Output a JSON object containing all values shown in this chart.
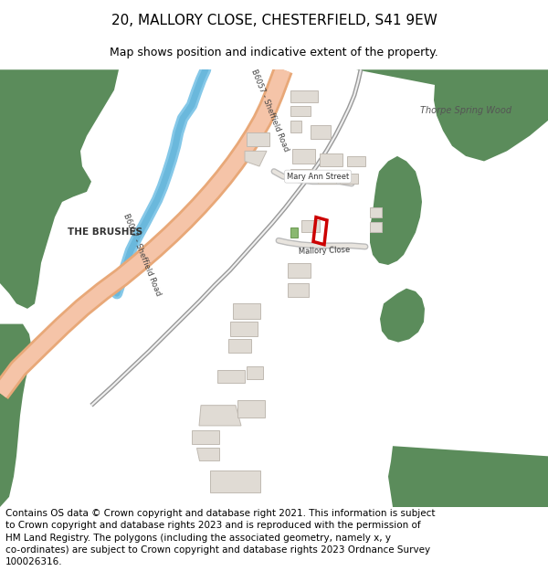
{
  "title": "20, MALLORY CLOSE, CHESTERFIELD, S41 9EW",
  "subtitle": "Map shows position and indicative extent of the property.",
  "footer": "Contains OS data © Crown copyright and database right 2021. This information is subject to Crown copyright and database rights 2023 and is reproduced with the permission of HM Land Registry. The polygons (including the associated geometry, namely x, y co-ordinates) are subject to Crown copyright and database rights 2023 Ordnance Survey 100026316.",
  "white_bg": "#ffffff",
  "map_bg": "#f7f4f0",
  "green_color": "#5b8c5b",
  "road_salmon": "#f5c4a8",
  "road_border": "#e8a878",
  "water_color": "#85c8e8",
  "building_color": "#e0dbd4",
  "building_border": "#c0bab2",
  "property_color": "#cc0000",
  "title_fontsize": 11,
  "subtitle_fontsize": 9,
  "footer_fontsize": 7.5
}
